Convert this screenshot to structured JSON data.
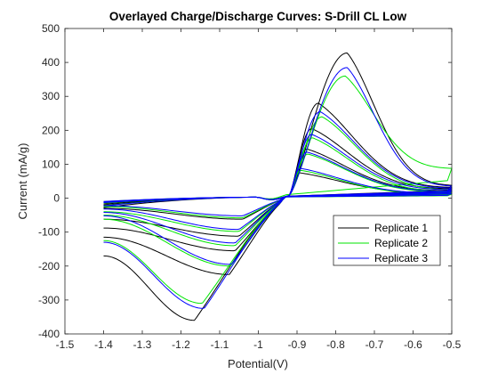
{
  "chart_data": {
    "type": "line",
    "title": "Overlayed Charge/Discharge Curves: S-Drill CL Low",
    "xlabel": "Potential(V)",
    "ylabel": "Current (mA/g)",
    "xlim": [
      -1.5,
      -0.5
    ],
    "ylim": [
      -400,
      500
    ],
    "xticks": [
      "-1.5",
      "-1.4",
      "-1.3",
      "-1.2",
      "-1.1",
      "-1",
      "-0.9",
      "-0.8",
      "-0.7",
      "-0.6",
      "-0.5"
    ],
    "yticks": [
      "500",
      "400",
      "300",
      "200",
      "100",
      "0",
      "-100",
      "-200",
      "-300",
      "-400"
    ],
    "grid": false,
    "legend_position": "lower-right",
    "series": [
      {
        "name": "Replicate 1",
        "color": "#000000",
        "cycles": [
          {
            "cathodic_peak": [
              -1.165,
              -360
            ],
            "cathodic_start": -170,
            "anodic_peak": [
              -0.77,
              428
            ],
            "anodic_end": 38
          },
          {
            "cathodic_peak": [
              -1.075,
              -225
            ],
            "cathodic_start": -115,
            "anodic_peak": [
              -0.845,
              280
            ],
            "anodic_end": 32
          },
          {
            "cathodic_peak": [
              -1.06,
              -155
            ],
            "cathodic_start": -88,
            "anodic_peak": [
              -0.862,
              205
            ],
            "anodic_end": 28
          },
          {
            "cathodic_peak": [
              -1.05,
              -112
            ],
            "cathodic_start": -62,
            "anodic_peak": [
              -0.875,
              145
            ],
            "anodic_end": 22
          },
          {
            "cathodic_peak": [
              -1.04,
              -62
            ],
            "cathodic_start": -30,
            "anodic_peak": [
              -0.895,
              75
            ],
            "anodic_end": 15
          }
        ]
      },
      {
        "name": "Replicate 2",
        "color": "#00e600",
        "cycles": [
          {
            "cathodic_peak": [
              -1.145,
              -310
            ],
            "cathodic_start": -125,
            "anodic_peak": [
              -0.775,
              360
            ],
            "anodic_end": 88
          },
          {
            "cathodic_peak": [
              -1.072,
              -200
            ],
            "cathodic_start": -62,
            "anodic_peak": [
              -0.835,
              240
            ],
            "anodic_end": 25
          },
          {
            "cathodic_peak": [
              -1.06,
              -140
            ],
            "cathodic_start": -50,
            "anodic_peak": [
              -0.86,
              178
            ],
            "anodic_end": 20
          },
          {
            "cathodic_peak": [
              -1.05,
              -98
            ],
            "cathodic_start": -40,
            "anodic_peak": [
              -0.872,
              130
            ],
            "anodic_end": 18
          },
          {
            "cathodic_peak": [
              -1.04,
              -58
            ],
            "cathodic_start": -25,
            "anodic_peak": [
              -0.89,
              82
            ],
            "anodic_end": 12
          }
        ]
      },
      {
        "name": "Replicate 3",
        "color": "#0000ff",
        "cycles": [
          {
            "cathodic_peak": [
              -1.14,
              -325
            ],
            "cathodic_start": -130,
            "anodic_peak": [
              -0.77,
              385
            ],
            "anodic_end": 36
          },
          {
            "cathodic_peak": [
              -1.07,
              -195
            ],
            "cathodic_start": -52,
            "anodic_peak": [
              -0.84,
              255
            ],
            "anodic_end": 30
          },
          {
            "cathodic_peak": [
              -1.06,
              -132
            ],
            "cathodic_start": -42,
            "anodic_peak": [
              -0.862,
              188
            ],
            "anodic_end": 25
          },
          {
            "cathodic_peak": [
              -1.05,
              -92
            ],
            "cathodic_start": -32,
            "anodic_peak": [
              -0.875,
              136
            ],
            "anodic_end": 20
          },
          {
            "cathodic_peak": [
              -1.04,
              -52
            ],
            "cathodic_start": -22,
            "anodic_peak": [
              -0.892,
              88
            ],
            "anodic_end": 14
          }
        ]
      }
    ]
  }
}
